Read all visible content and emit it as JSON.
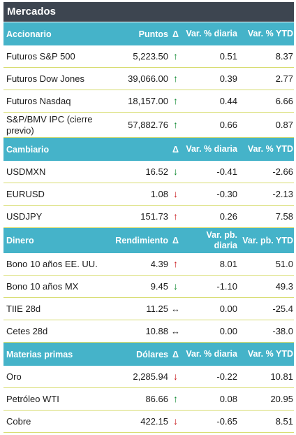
{
  "title": "Mercados",
  "sections": [
    {
      "headers": [
        "Accionario",
        "Puntos",
        "Δ",
        "Var. % diaria",
        "Var. % YTD"
      ],
      "rows": [
        {
          "name": "Futuros S&P 500",
          "value": "5,223.50",
          "arrow": "↑",
          "daily": "0.51",
          "ytd": "8.37"
        },
        {
          "name": "Futuros Dow Jones",
          "value": "39,066.00",
          "arrow": "↑",
          "daily": "0.39",
          "ytd": "2.77"
        },
        {
          "name": "Futuros Nasdaq",
          "value": "18,157.00",
          "arrow": "↑",
          "daily": "0.44",
          "ytd": "6.66"
        },
        {
          "name": "S&P/BMV IPC (cierre previo)",
          "value": "57,882.76",
          "arrow": "↑",
          "daily": "0.66",
          "ytd": "0.87"
        }
      ]
    },
    {
      "headers": [
        "Cambiario",
        "",
        "Δ",
        "Var. % diaria",
        "Var. % YTD"
      ],
      "rows": [
        {
          "name": "USDMXN",
          "value": "16.52",
          "arrow": "↓",
          "daily": "-0.41",
          "ytd": "-2.66"
        },
        {
          "name": "EURUSD",
          "value": "1.08",
          "arrow": "↓",
          "daily": "-0.30",
          "ytd": "-2.13"
        },
        {
          "name": "USDJPY",
          "value": "151.73",
          "arrow": "↑",
          "daily": "0.26",
          "ytd": "7.58"
        }
      ]
    },
    {
      "headers": [
        "Dinero",
        "Rendimiento",
        "Δ",
        "Var. pb. diaria",
        "Var. pb. YTD"
      ],
      "rows": [
        {
          "name": "Bono 10 años EE. UU.",
          "value": "4.39",
          "arrow": "↑",
          "daily": "8.01",
          "ytd": "51.0"
        },
        {
          "name": "Bono 10 años MX",
          "value": "9.45",
          "arrow": "↓",
          "daily": "-1.10",
          "ytd": "49.3"
        },
        {
          "name": "TIIE 28d",
          "value": "11.25",
          "arrow": "↔",
          "daily": "0.00",
          "ytd": "-25.4"
        },
        {
          "name": "Cetes 28d",
          "value": "10.88",
          "arrow": "↔",
          "daily": "0.00",
          "ytd": "-38.0"
        }
      ]
    },
    {
      "headers": [
        "Materias primas",
        "Dólares",
        "Δ",
        "Var. % diaria",
        "Var. % YTD"
      ],
      "rows": [
        {
          "name": "Oro",
          "value": "2,285.94",
          "arrow": "↓",
          "daily": "-0.22",
          "ytd": "10.81"
        },
        {
          "name": "Petróleo WTI",
          "value": "86.66",
          "arrow": "↑",
          "daily": "0.08",
          "ytd": "20.95"
        },
        {
          "name": "Cobre",
          "value": "422.15",
          "arrow": "↓",
          "daily": "-0.65",
          "ytd": "8.51"
        }
      ]
    }
  ],
  "colors": {
    "title_bg": "#3d4550",
    "header_bg": "#45b3c9",
    "row_border": "#d8dd72",
    "arrow_green": "#108a32",
    "arrow_red": "#c8191c"
  }
}
